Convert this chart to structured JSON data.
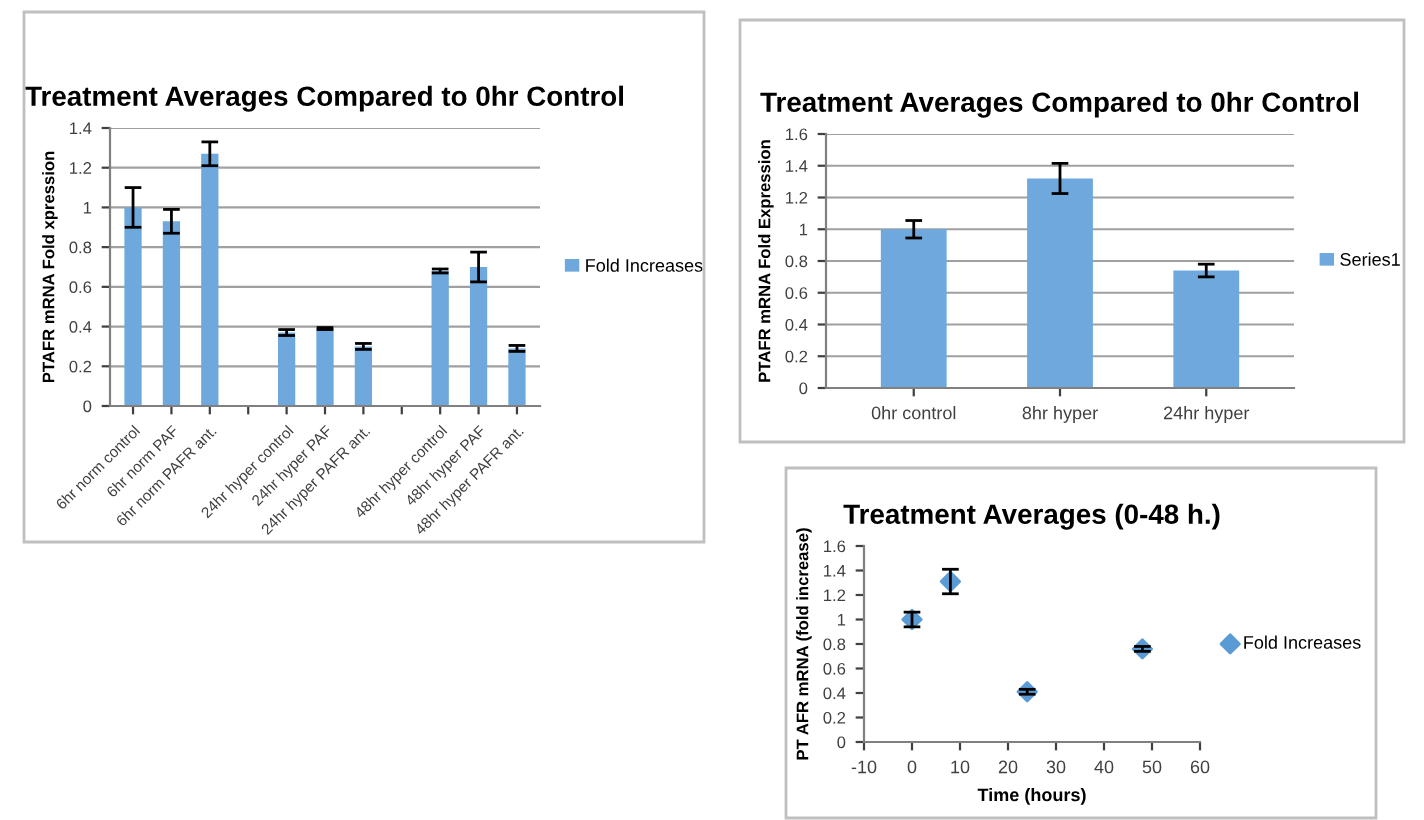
{
  "chart_data": [
    {
      "type": "bar",
      "title": "Treatment Averages Compared to 0hr Control",
      "ylabel": "PTAFR mRNA Fold xpression",
      "categories": [
        "6hr norm control",
        "6hr norm PAF",
        "6hr norm PAFR ant.",
        null,
        "24hr hyper control",
        "24hr hyper PAF",
        "24hr hyper PAFR ant.",
        null,
        "48hr hyper control",
        "48hr hyper PAF",
        "48hr hyper PAFR ant."
      ],
      "series": [
        {
          "name": "Fold Increases",
          "color": "#6fa8dc",
          "values": [
            1.0,
            0.93,
            1.27,
            null,
            0.37,
            0.39,
            0.3,
            null,
            0.68,
            0.7,
            0.29
          ],
          "errors": [
            0.1,
            0.06,
            0.06,
            null,
            0.015,
            0.005,
            0.015,
            null,
            0.01,
            0.075,
            0.015
          ]
        }
      ],
      "ylim": [
        0,
        1.4
      ],
      "yticks": [
        0,
        0.2,
        0.4,
        0.6,
        0.8,
        1,
        1.2,
        1.4
      ],
      "grid": "y",
      "legend": "right"
    },
    {
      "type": "bar",
      "title": "Treatment Averages Compared to 0hr Control",
      "ylabel": "PTAFR mRNA Fold Expression",
      "categories": [
        "0hr control",
        "8hr hyper",
        "24hr hyper"
      ],
      "series": [
        {
          "name": "Series1",
          "color": "#6fa8dc",
          "values": [
            1.0,
            1.32,
            0.74
          ],
          "errors": [
            0.055,
            0.095,
            0.04
          ]
        }
      ],
      "ylim": [
        0,
        1.6
      ],
      "yticks": [
        0,
        0.2,
        0.4,
        0.6,
        0.8,
        1,
        1.2,
        1.4,
        1.6
      ],
      "grid": "y",
      "legend": "right"
    },
    {
      "type": "scatter",
      "title": "Treatment Averages (0-48 h.)",
      "xlabel": "Time (hours)",
      "ylabel": "PT AFR mRNA (fold increase)",
      "series": [
        {
          "name": "Fold Increases",
          "color": "#5b9bd5",
          "x": [
            0,
            8,
            24,
            48
          ],
          "values": [
            1.0,
            1.31,
            0.41,
            0.76
          ],
          "errors": [
            0.06,
            0.1,
            0.02,
            0.02
          ]
        }
      ],
      "xlim": [
        -10,
        60
      ],
      "xticks": [
        -10,
        0,
        10,
        20,
        30,
        40,
        50,
        60
      ],
      "ylim": [
        0,
        1.6
      ],
      "yticks": [
        0,
        0.2,
        0.4,
        0.6,
        0.8,
        1,
        1.2,
        1.4,
        1.6
      ],
      "grid": false,
      "legend": "right",
      "marker": "diamond"
    }
  ]
}
